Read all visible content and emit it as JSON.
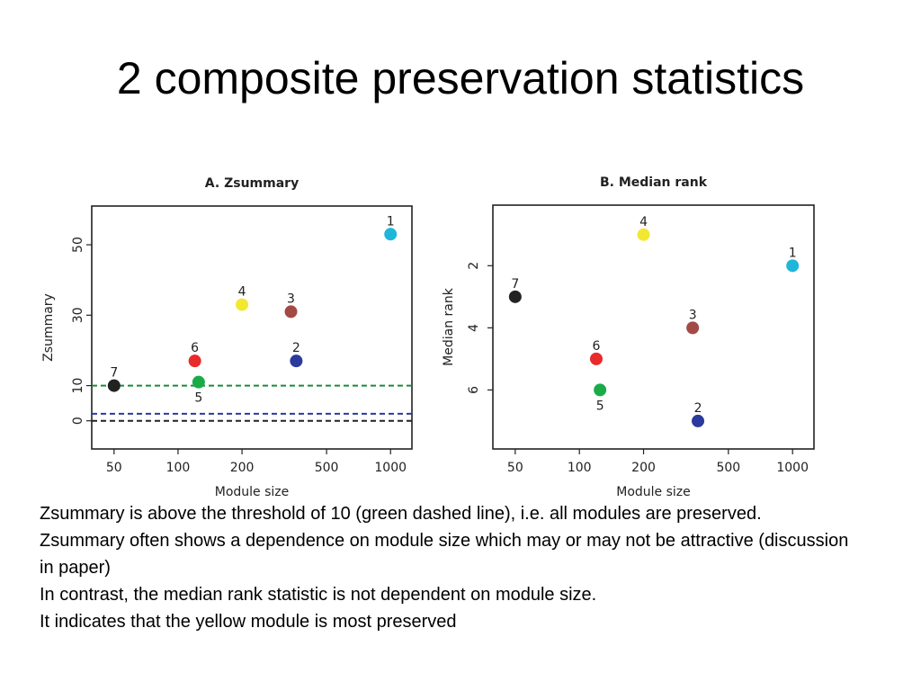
{
  "slide": {
    "title": "2 composite preservation statistics",
    "paragraphs": [
      "Zsummary is above the threshold of 10 (green dashed line), i.e. all modules are preserved.",
      "Zsummary often shows a dependence on module size which may or may not be attractive (discussion in paper)",
      "In contrast, the median rank statistic is not dependent on module size.",
      "It indicates that the yellow module is most preserved"
    ]
  },
  "chart_data": [
    {
      "type": "scatter",
      "title": "A. Zsummary",
      "xlabel": "Module size",
      "ylabel": "Zsummary",
      "xscale": "log",
      "xticks": [
        50,
        100,
        200,
        500,
        1000
      ],
      "xtick_labels": [
        "50",
        "100",
        "200",
        "500",
        "1000"
      ],
      "yticks": [
        0,
        10,
        30,
        50
      ],
      "ytick_labels": [
        "0",
        "10",
        "30",
        "50"
      ],
      "xlim": [
        45,
        1100
      ],
      "ylim": [
        -8,
        61
      ],
      "points": [
        {
          "label": "1",
          "x": 1000,
          "y": 53,
          "color": "#1fb6d9"
        },
        {
          "label": "2",
          "x": 360,
          "y": 17,
          "color": "#2b3a9c"
        },
        {
          "label": "3",
          "x": 340,
          "y": 31,
          "color": "#a34a44"
        },
        {
          "label": "4",
          "x": 200,
          "y": 33,
          "color": "#f2e832"
        },
        {
          "label": "5",
          "x": 125,
          "y": 11,
          "color": "#1aab48"
        },
        {
          "label": "6",
          "x": 120,
          "y": 17,
          "color": "#e82a2a"
        },
        {
          "label": "7",
          "x": 50,
          "y": 10,
          "color": "#222222"
        }
      ],
      "reference_lines": [
        {
          "y": 10,
          "color": "#1a8a3a",
          "style": "dashed"
        },
        {
          "y": 2,
          "color": "#2b3a9c",
          "style": "dashed"
        },
        {
          "y": 0,
          "color": "#222222",
          "style": "dashed"
        }
      ]
    },
    {
      "type": "scatter",
      "title": "B. Median rank",
      "xlabel": "Module size",
      "ylabel": "Median rank",
      "xscale": "log",
      "yaxis_inverted": true,
      "xticks": [
        50,
        100,
        200,
        500,
        1000
      ],
      "xtick_labels": [
        "50",
        "100",
        "200",
        "500",
        "1000"
      ],
      "yticks": [
        2,
        4,
        6
      ],
      "ytick_labels": [
        "2",
        "4",
        "6"
      ],
      "xlim": [
        45,
        1100
      ],
      "ylim": [
        7.9,
        0.05
      ],
      "points": [
        {
          "label": "1",
          "x": 1000,
          "y": 2.0,
          "color": "#1fb6d9"
        },
        {
          "label": "2",
          "x": 360,
          "y": 7.0,
          "color": "#2b3a9c"
        },
        {
          "label": "3",
          "x": 340,
          "y": 4.0,
          "color": "#a34a44"
        },
        {
          "label": "4",
          "x": 200,
          "y": 1.0,
          "color": "#f2e832"
        },
        {
          "label": "5",
          "x": 125,
          "y": 6.0,
          "color": "#1aab48"
        },
        {
          "label": "6",
          "x": 120,
          "y": 5.0,
          "color": "#e82a2a"
        },
        {
          "label": "7",
          "x": 50,
          "y": 3.0,
          "color": "#222222"
        }
      ]
    }
  ]
}
